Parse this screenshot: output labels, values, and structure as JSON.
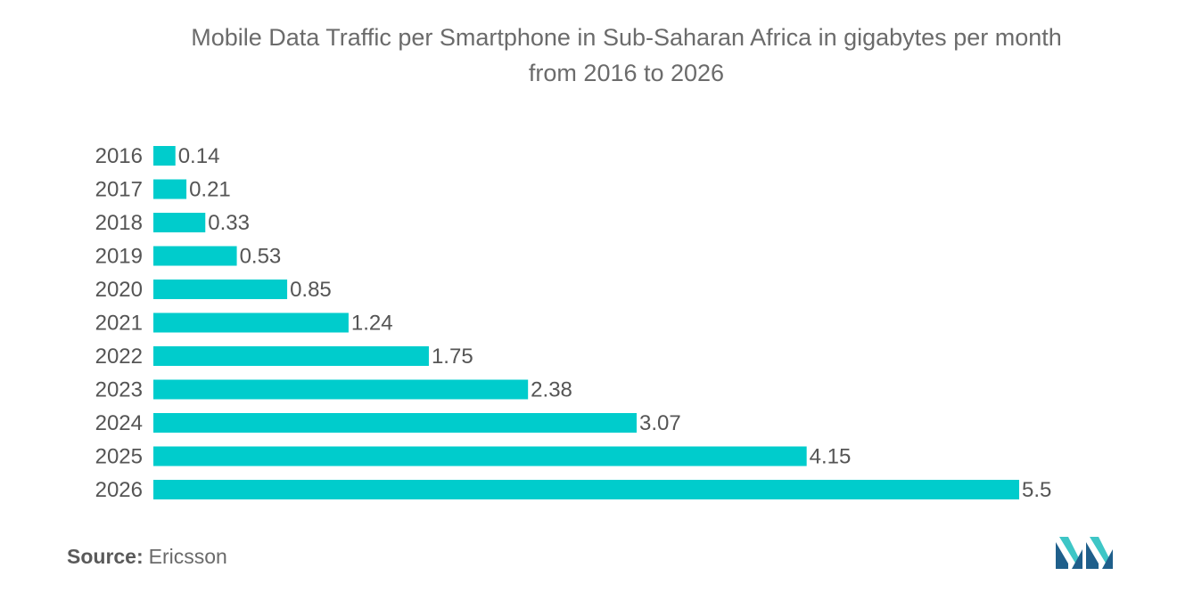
{
  "chart_data": {
    "type": "bar",
    "orientation": "horizontal",
    "title_line1": "Mobile Data Traffic per Smartphone in Sub-Saharan Africa in gigabytes per month",
    "title_line2": "from 2016 to 2026",
    "categories": [
      "2016",
      "2017",
      "2018",
      "2019",
      "2020",
      "2021",
      "2022",
      "2023",
      "2024",
      "2025",
      "2026"
    ],
    "values": [
      0.14,
      0.21,
      0.33,
      0.53,
      0.85,
      1.24,
      1.75,
      2.38,
      3.07,
      4.15,
      5.5
    ],
    "value_labels": [
      "0.14",
      "0.21",
      "0.33",
      "0.53",
      "0.85",
      "1.24",
      "1.75",
      "2.38",
      "3.07",
      "4.15",
      "5.5"
    ],
    "xlim": [
      0,
      5.5
    ],
    "grid": false,
    "legend": "none",
    "bar_color": "#00cccc"
  },
  "source": {
    "label": "Source:",
    "value": "Ericsson"
  },
  "logo": {
    "icon": "mordor-intelligence-logo-icon",
    "colors": [
      "#1f5f8b",
      "#3ec6c6"
    ]
  }
}
